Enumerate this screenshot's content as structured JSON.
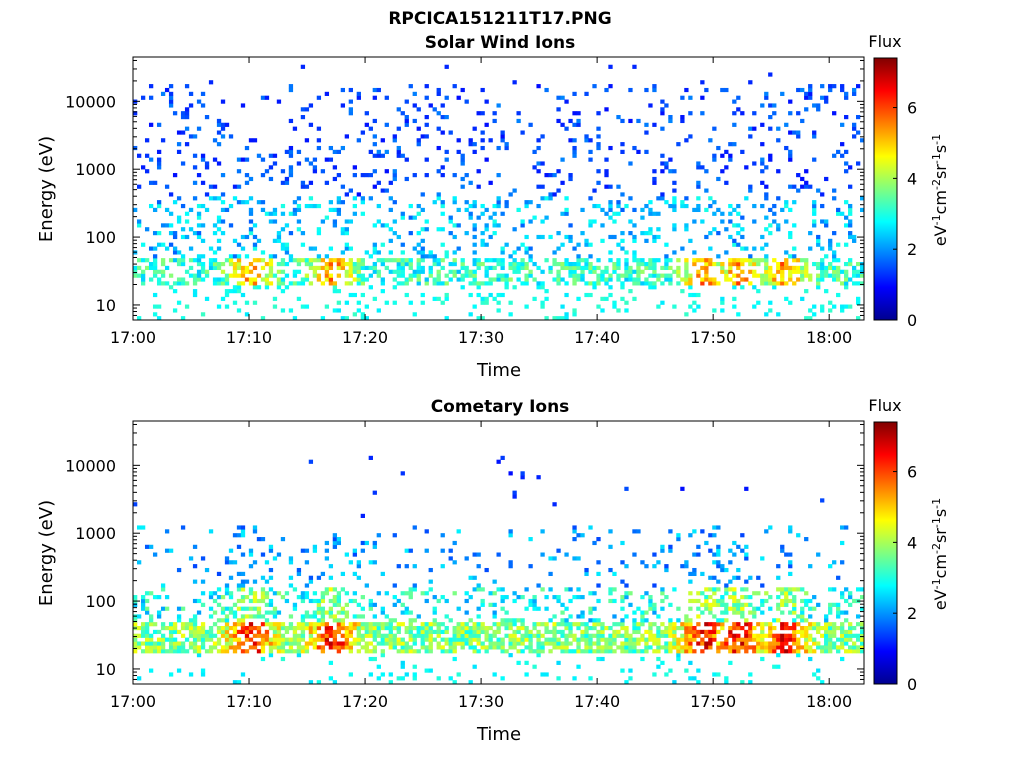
{
  "figure_title": "RPCICA151211T17.PNG",
  "chart_data": [
    {
      "type": "heatmap",
      "title": "Solar Wind Ions",
      "xlabel": "Time",
      "ylabel": "Energy (eV)",
      "y_scale": "log",
      "ylim": [
        6,
        45000
      ],
      "xlim": [
        "17:00",
        "18:03"
      ],
      "x_ticks": [
        "17:00",
        "17:10",
        "17:20",
        "17:30",
        "17:40",
        "17:50",
        "18:00"
      ],
      "y_ticks": [
        "10",
        "100",
        "1000",
        "10000"
      ],
      "colorbar": {
        "title": "Flux",
        "label": "eV-1cm-2sr-1s-1",
        "range": [
          0,
          7.4
        ],
        "ticks": [
          "0",
          "2",
          "4",
          "6"
        ],
        "colormap": "jet"
      },
      "grid": false,
      "description": "Sparse low-level flux (~1-2) scattered over 100 eV-20 keV; persistent band of higher flux (3-6) near 20-40 eV, peaking around 17:50-17:57."
    },
    {
      "type": "heatmap",
      "title": "Cometary Ions",
      "xlabel": "Time",
      "ylabel": "Energy (eV)",
      "y_scale": "log",
      "ylim": [
        6,
        45000
      ],
      "xlim": [
        "17:00",
        "18:03"
      ],
      "x_ticks": [
        "17:00",
        "17:10",
        "17:20",
        "17:30",
        "17:40",
        "17:50",
        "18:00"
      ],
      "y_ticks": [
        "10",
        "100",
        "1000",
        "10000"
      ],
      "colorbar": {
        "title": "Flux",
        "label": "eV-1cm-2sr-1s-1",
        "range": [
          0,
          7.4
        ],
        "ticks": [
          "0",
          "2",
          "4",
          "6"
        ],
        "colormap": "jet"
      },
      "grid": false,
      "description": "Strong band 15-40 eV with flux up to ~7 at 17:10, 17:17 and 17:48-17:57; intermittent bursts reaching 1000 eV; few isolated points above 1 keV."
    }
  ]
}
